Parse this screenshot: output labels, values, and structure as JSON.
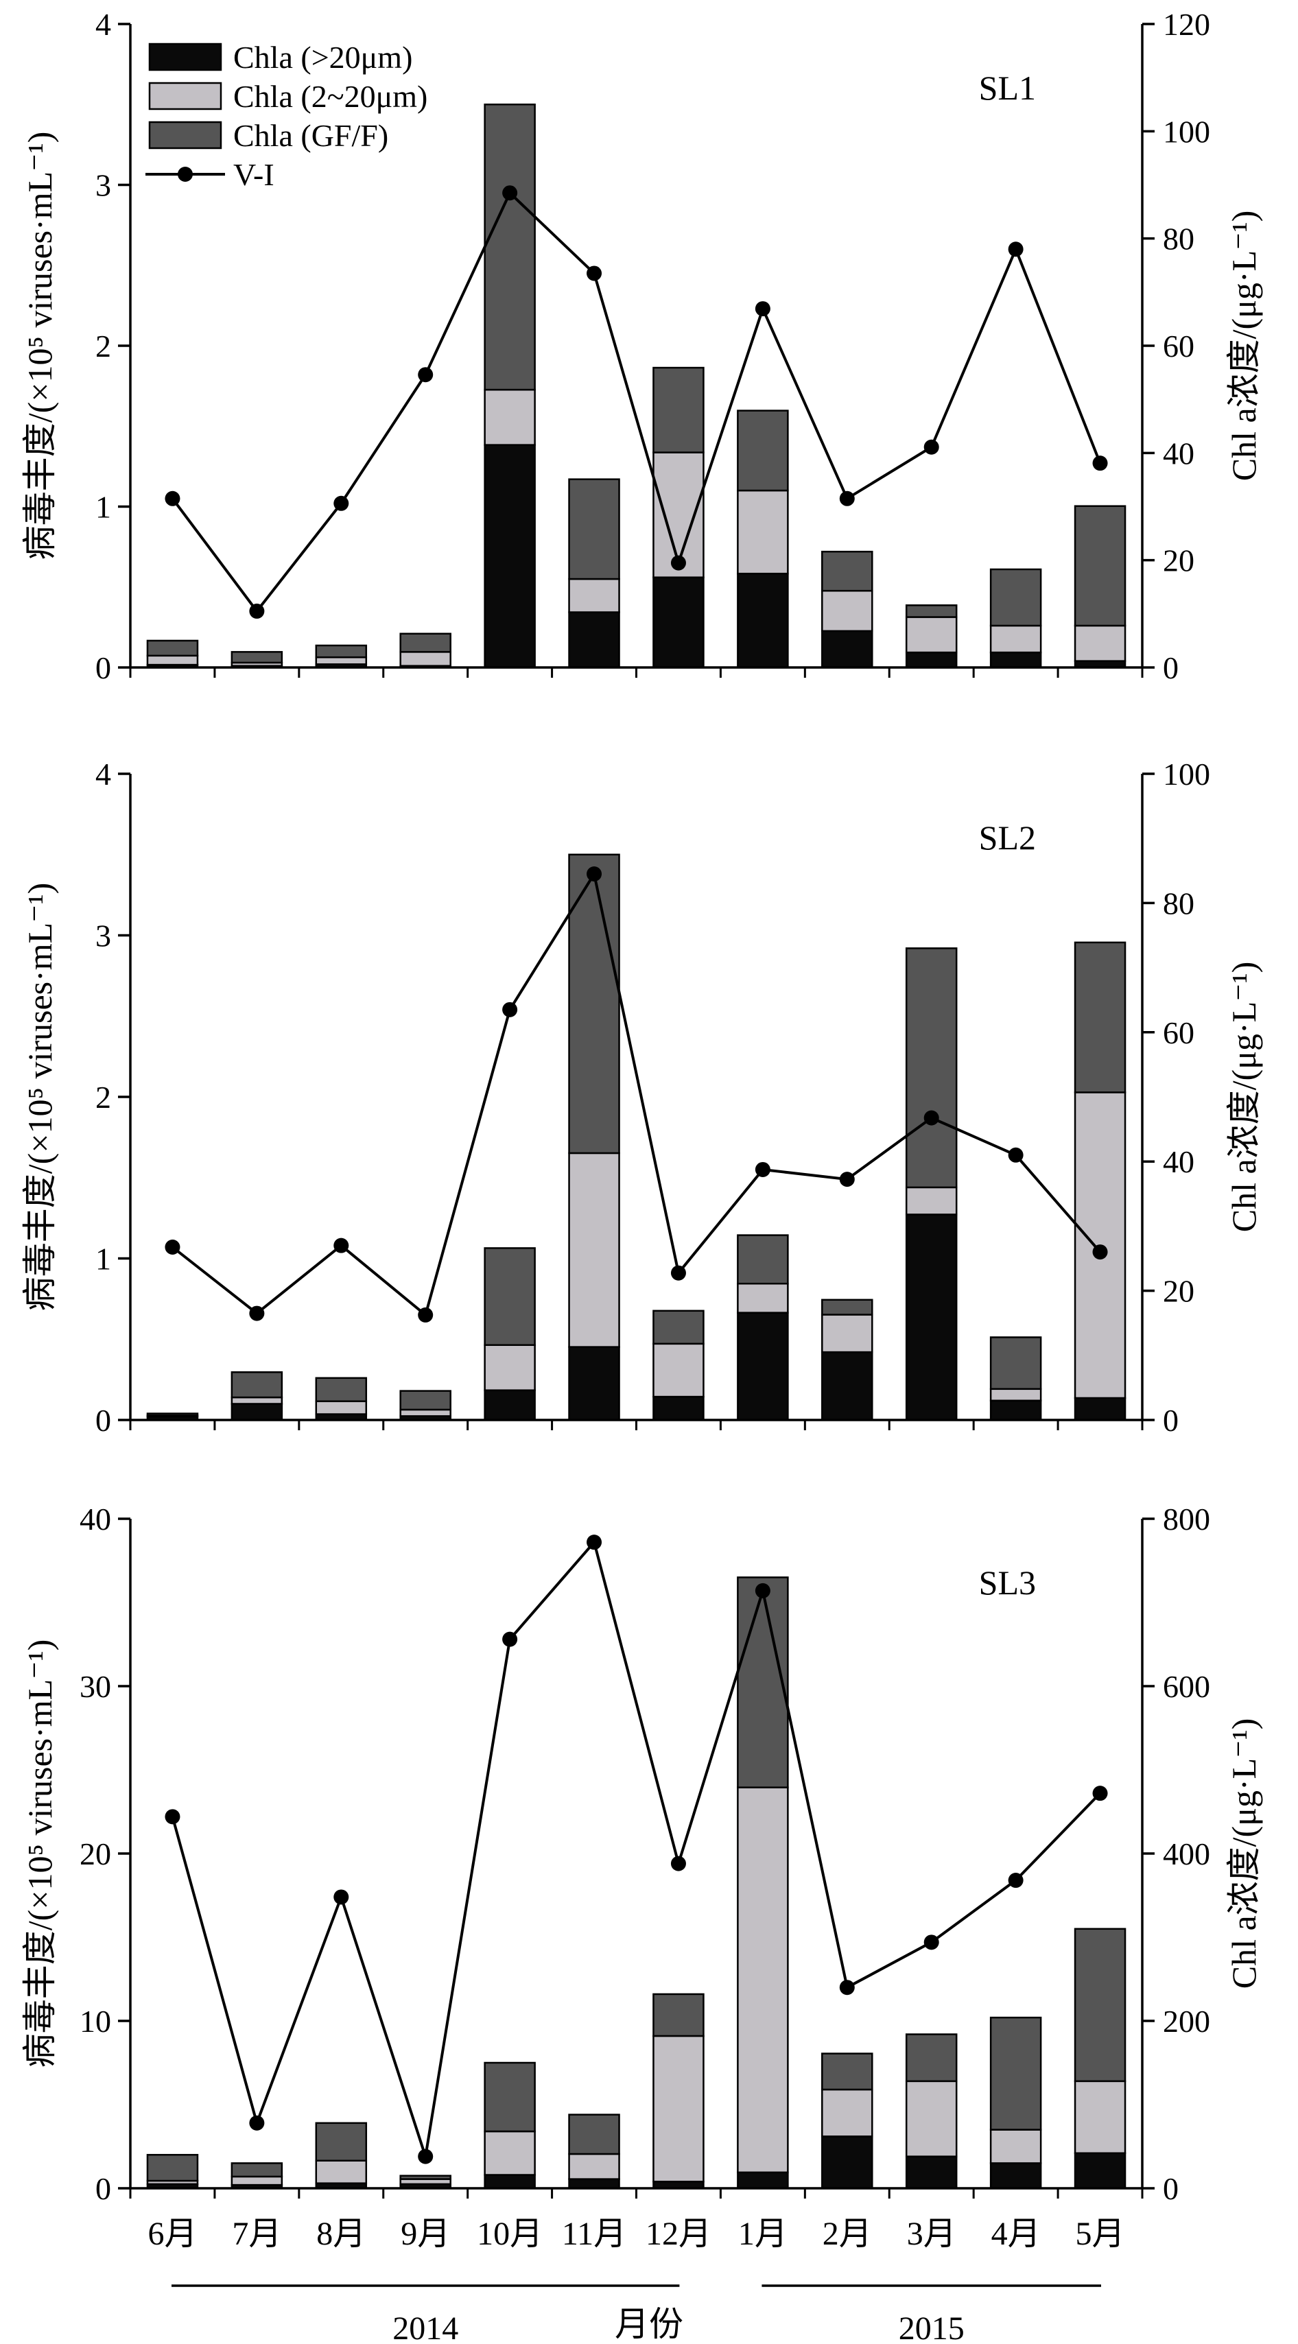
{
  "colors": {
    "chla_gt20": "#0a0a0a",
    "chla_2_20": "#c3c0c5",
    "chla_gff": "#555555",
    "vi_line": "#000000"
  },
  "x_axis": {
    "label": "月份",
    "categories": [
      "6月",
      "7月",
      "8月",
      "9月",
      "10月",
      "11月",
      "12月",
      "1月",
      "2月",
      "3月",
      "4月",
      "5月"
    ],
    "years": [
      {
        "label": "2014",
        "start": 0,
        "end": 6
      },
      {
        "label": "2015",
        "start": 7,
        "end": 11
      }
    ]
  },
  "chart_data": [
    {
      "type": "bar",
      "panel": "SL1",
      "title": "SL1",
      "stacked": true,
      "ylabel_left": "病毒丰度/(×10⁵ viruses·mL⁻¹)",
      "ylabel_right": "Chl a浓度/(μg·L⁻¹)",
      "ylim_left": [
        0,
        4
      ],
      "yticks_left": [
        0,
        1,
        2,
        3,
        4
      ],
      "ylim_right": [
        0,
        120
      ],
      "yticks_right": [
        0,
        20,
        40,
        60,
        80,
        100,
        120
      ],
      "legend": [
        {
          "name": "Chla (>20μm)",
          "kind": "bar",
          "color_key": "chla_gt20"
        },
        {
          "name": "Chla (2~20μm)",
          "kind": "bar",
          "color_key": "chla_2_20"
        },
        {
          "name": "Chla (GF/F)",
          "kind": "bar",
          "color_key": "chla_gff"
        },
        {
          "name": "V-I",
          "kind": "line",
          "color_key": "vi_line"
        }
      ],
      "legend_position": "top-left",
      "series": [
        {
          "name": "Chla (>20μm)",
          "axis": "right",
          "values": [
            0.5,
            0.3,
            0.6,
            0.3,
            41.5,
            10.3,
            16.8,
            17.5,
            6.8,
            2.8,
            2.8,
            1.2
          ]
        },
        {
          "name": "Chla (2~20μm)",
          "axis": "right",
          "values": [
            1.7,
            0.6,
            1.3,
            2.6,
            10.3,
            6.2,
            23.3,
            15.5,
            7.5,
            6.6,
            5.0,
            6.6
          ]
        },
        {
          "name": "Chla (GF/F)",
          "axis": "right",
          "values": [
            2.8,
            2.0,
            2.2,
            3.4,
            53.2,
            18.6,
            15.8,
            14.9,
            7.3,
            2.2,
            10.5,
            22.3
          ]
        },
        {
          "name": "V-I",
          "axis": "left",
          "type": "line",
          "values": [
            1.05,
            0.35,
            1.02,
            1.82,
            2.95,
            2.45,
            0.65,
            2.23,
            1.05,
            1.37,
            2.6,
            1.27
          ]
        }
      ]
    },
    {
      "type": "bar",
      "panel": "SL2",
      "title": "SL2",
      "stacked": true,
      "ylabel_left": "病毒丰度/(×10⁵ viruses·mL⁻¹)",
      "ylabel_right": "Chl a浓度/(μg·L⁻¹)",
      "ylim_left": [
        0,
        4
      ],
      "yticks_left": [
        0,
        1,
        2,
        3,
        4
      ],
      "ylim_right": [
        0,
        100
      ],
      "yticks_right": [
        0,
        20,
        40,
        60,
        80,
        100
      ],
      "series": [
        {
          "name": "Chla (>20μm)",
          "axis": "right",
          "values": [
            0.5,
            2.5,
            0.9,
            0.6,
            4.6,
            11.3,
            3.6,
            16.6,
            10.5,
            31.8,
            3.0,
            3.4
          ]
        },
        {
          "name": "Chla (2~20μm)",
          "axis": "right",
          "values": [
            0.2,
            1.0,
            2.0,
            1.0,
            7.0,
            30.0,
            8.2,
            4.5,
            5.8,
            4.2,
            1.8,
            47.3
          ]
        },
        {
          "name": "Chla (GF/F)",
          "axis": "right",
          "values": [
            0.3,
            3.9,
            3.6,
            2.9,
            15.0,
            46.2,
            5.1,
            7.5,
            2.3,
            37.0,
            8.0,
            23.2
          ]
        },
        {
          "name": "V-I",
          "axis": "left",
          "type": "line",
          "values": [
            1.07,
            0.66,
            1.08,
            0.65,
            2.54,
            3.38,
            0.91,
            1.55,
            1.49,
            1.87,
            1.64,
            1.04
          ]
        }
      ]
    },
    {
      "type": "bar",
      "panel": "SL3",
      "title": "SL3",
      "stacked": true,
      "ylabel_left": "病毒丰度/(×10⁵ viruses·mL⁻¹)",
      "ylabel_right": "Chl a浓度/(μg·L⁻¹)",
      "ylim_left": [
        0,
        40
      ],
      "yticks_left": [
        0,
        10,
        20,
        30,
        40
      ],
      "ylim_right": [
        0,
        800
      ],
      "yticks_right": [
        0,
        200,
        400,
        600,
        800
      ],
      "series": [
        {
          "name": "Chla (>20μm)",
          "axis": "right",
          "values": [
            5,
            4,
            6,
            5,
            16,
            11,
            8,
            19,
            62,
            38,
            30,
            42
          ]
        },
        {
          "name": "Chla (2~20μm)",
          "axis": "right",
          "values": [
            4,
            10,
            27,
            6,
            52,
            30,
            174,
            460,
            56,
            90,
            40,
            86
          ]
        },
        {
          "name": "Chla (GF/F)",
          "axis": "right",
          "values": [
            31,
            16,
            45,
            4,
            82,
            47,
            50,
            251,
            43,
            56,
            134,
            182
          ]
        },
        {
          "name": "V-I",
          "axis": "left",
          "type": "line",
          "values": [
            22.2,
            3.9,
            17.4,
            1.9,
            32.8,
            38.6,
            19.4,
            35.7,
            12.0,
            14.7,
            18.4,
            23.6
          ]
        }
      ]
    }
  ]
}
